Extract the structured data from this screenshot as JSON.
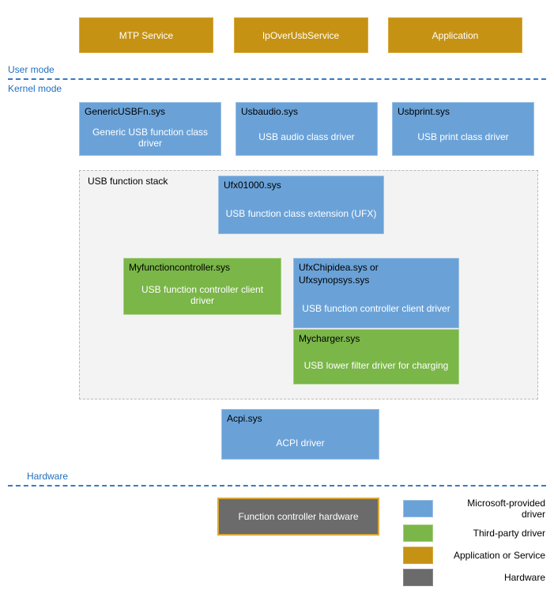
{
  "colors": {
    "gold": "#c69214",
    "gold_border": "#d9a83a",
    "ms_blue": "#6aa2d8",
    "ms_blue_border": "#9bc0e4",
    "thirdparty": "#7ab648",
    "thirdparty_border": "#a5d07f",
    "hw": "#6b6b6b",
    "hw_border": "#d9a83a",
    "divider": "#3a7abf",
    "stack_bg": "#f3f3f3",
    "stack_border": "#bbbbbb"
  },
  "mode_labels": {
    "user": "User mode",
    "kernel": "Kernel mode"
  },
  "apps": {
    "a": "MTP Service",
    "b": "IpOverUsbService",
    "c": "Application"
  },
  "class_drivers": {
    "g_title": "GenericUSBFn.sys",
    "g_body": "Generic USB function class driver",
    "a_title": "Usbaudio.sys",
    "a_body": "USB audio class driver",
    "p_title": "Usbprint.sys",
    "p_body": "USB print class driver"
  },
  "stack": {
    "label": "USB function stack",
    "ufx_title": "Ufx01000.sys",
    "ufx_body": "USB function class extension (UFX)",
    "mfc_title": "Myfunctioncontroller.sys",
    "mfc_body": "USB function controller client driver",
    "ucc_title": "UfxChipidea.sys or\nUfxsynopsys.sys",
    "ucc_body": "USB function controller client driver",
    "chg_title": "Mycharger.sys",
    "chg_body": "USB lower filter driver for charging"
  },
  "acpi": {
    "title": "Acpi.sys",
    "body": "ACPI driver"
  },
  "hardware_label": "Hardware",
  "hw_box": "Function controller hardware",
  "legend": {
    "ms": "Microsoft-provided driver",
    "tp": "Third-party driver",
    "app": "Application or Service",
    "hw": "Hardware"
  }
}
